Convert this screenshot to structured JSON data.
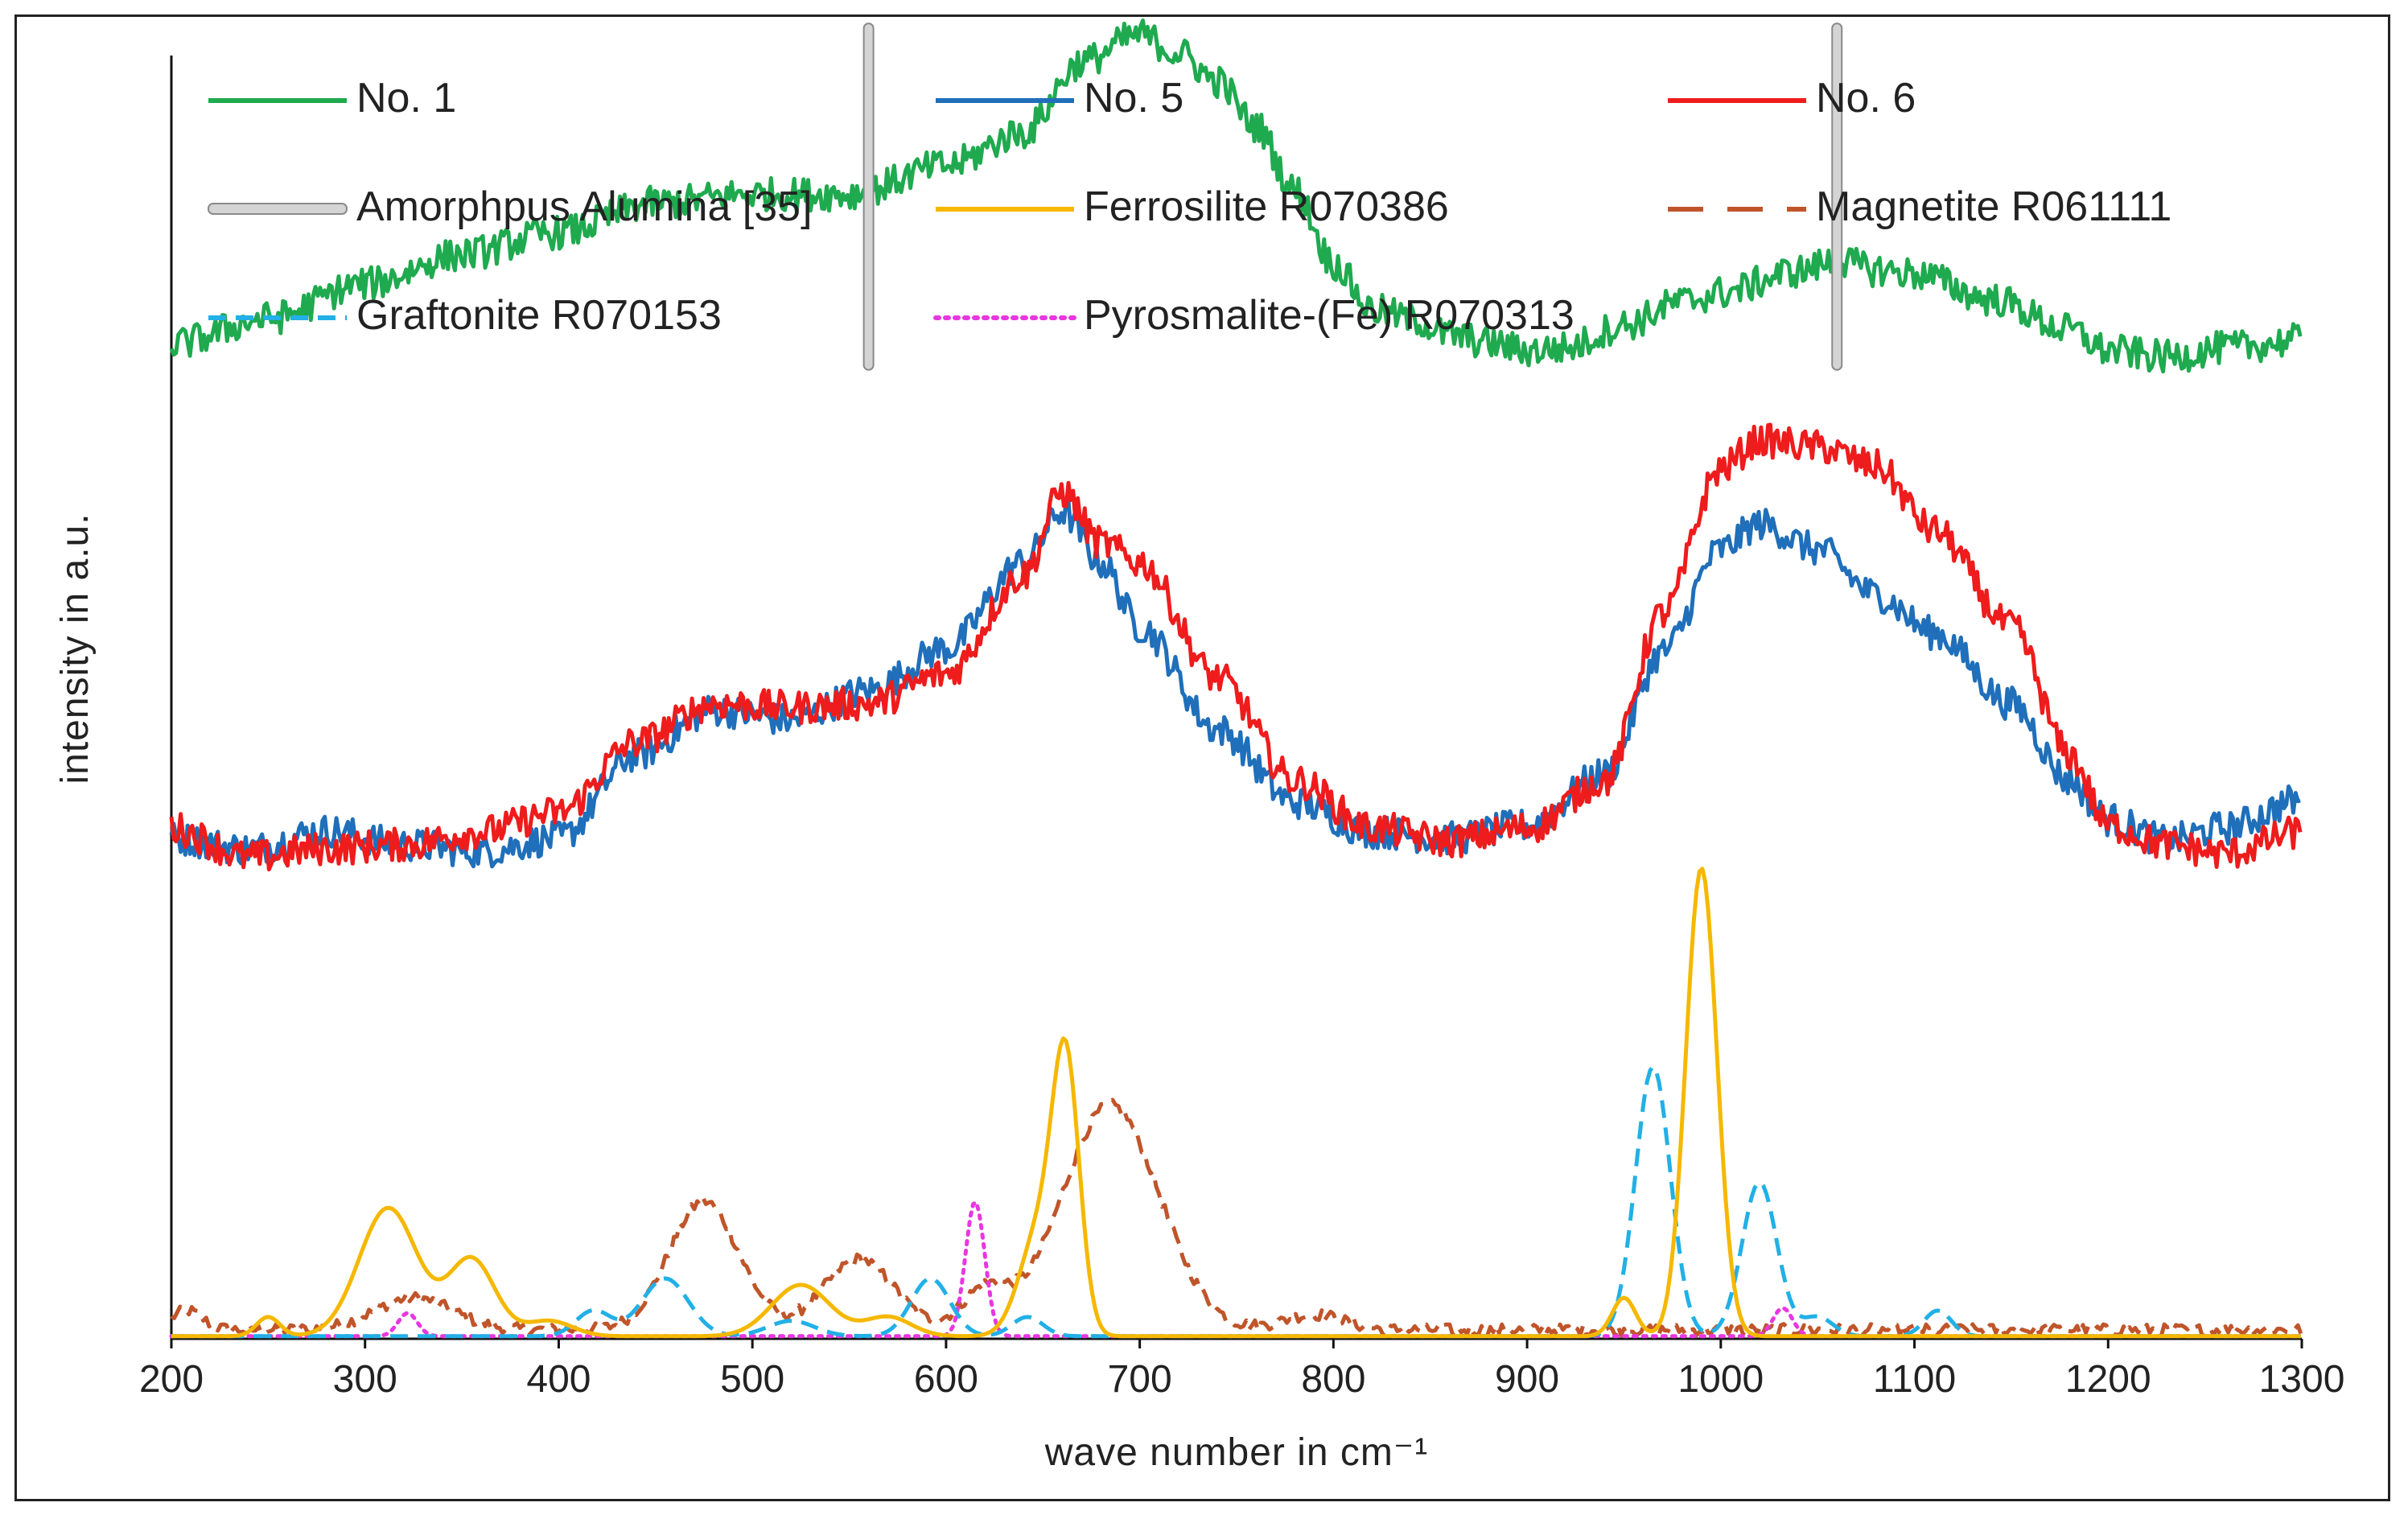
{
  "chart_data": {
    "type": "line",
    "title": "",
    "xlabel": "wave number in cm⁻¹",
    "ylabel": "intensity in a.u.",
    "xlim": [
      200,
      1300
    ],
    "ylim": [
      0,
      10
    ],
    "x_ticks": [
      "200",
      "300",
      "400",
      "500",
      "600",
      "700",
      "800",
      "900",
      "1000",
      "1100",
      "1200",
      "1300"
    ],
    "grid": false,
    "legend_position": "top",
    "series": [
      {
        "name": "No. 1",
        "color": "#1faa4f",
        "style": "solid",
        "x": [
          200,
          250,
          300,
          350,
          400,
          450,
          500,
          550,
          600,
          640,
          670,
          700,
          720,
          740,
          760,
          780,
          800,
          820,
          840,
          860,
          880,
          900,
          920,
          950,
          980,
          1000,
          1040,
          1060,
          1080,
          1100,
          1140,
          1180,
          1200,
          1230,
          1260,
          1300
        ],
        "y": [
          7.75,
          7.95,
          8.22,
          8.45,
          8.62,
          8.85,
          8.92,
          8.92,
          9.14,
          9.4,
          9.95,
          10.16,
          10.02,
          9.8,
          9.45,
          8.95,
          8.38,
          8.02,
          7.95,
          7.82,
          7.76,
          7.7,
          7.72,
          7.9,
          8.08,
          8.15,
          8.32,
          8.4,
          8.33,
          8.3,
          8.1,
          7.86,
          7.7,
          7.65,
          7.72,
          7.78
        ]
      },
      {
        "name": "No. 5",
        "color": "#1f6fba",
        "style": "solid",
        "x": [
          200,
          240,
          280,
          320,
          360,
          400,
          440,
          480,
          520,
          560,
          600,
          640,
          660,
          680,
          700,
          740,
          780,
          820,
          860,
          900,
          940,
          970,
          1000,
          1020,
          1050,
          1080,
          1110,
          1150,
          1180,
          1200,
          1230,
          1260,
          1300
        ],
        "y": [
          3.9,
          3.82,
          3.96,
          3.85,
          3.8,
          3.9,
          4.55,
          4.9,
          4.82,
          5.05,
          5.38,
          6.05,
          6.45,
          6.05,
          5.55,
          4.75,
          4.18,
          3.95,
          3.9,
          4.0,
          4.4,
          5.35,
          6.15,
          6.35,
          6.15,
          5.8,
          5.5,
          4.95,
          4.35,
          4.05,
          3.88,
          3.98,
          4.2
        ]
      },
      {
        "name": "No. 6",
        "color": "#ee1c1c",
        "style": "solid",
        "x": [
          200,
          240,
          280,
          320,
          360,
          400,
          440,
          480,
          520,
          560,
          600,
          640,
          660,
          680,
          700,
          740,
          780,
          820,
          860,
          900,
          940,
          970,
          1000,
          1020,
          1050,
          1080,
          1110,
          1150,
          1180,
          1200,
          1230,
          1260,
          1300
        ],
        "y": [
          3.98,
          3.75,
          3.82,
          3.85,
          3.95,
          4.1,
          4.65,
          4.95,
          4.92,
          4.95,
          5.18,
          5.95,
          6.6,
          6.2,
          6.05,
          5.15,
          4.35,
          3.98,
          3.88,
          3.98,
          4.35,
          5.65,
          6.78,
          7.0,
          6.95,
          6.8,
          6.3,
          5.55,
          4.55,
          4.0,
          3.85,
          3.78,
          3.95
        ]
      },
      {
        "name": "Amorphpus Alumina [35]",
        "color": "#b8b8b8",
        "style": "bar",
        "x": [
          560,
          1060
        ],
        "y_range": [
          7.55,
          10.25
        ]
      },
      {
        "name": "Ferrosilite R070386",
        "color": "#f5b800",
        "style": "solid",
        "peaks": [
          [
            250,
            0.15,
            6
          ],
          [
            312,
            1.0,
            15
          ],
          [
            355,
            0.6,
            12
          ],
          [
            395,
            0.12,
            12
          ],
          [
            525,
            0.4,
            15
          ],
          [
            570,
            0.15,
            12
          ],
          [
            648,
            0.8,
            10
          ],
          [
            662,
            2.0,
            7
          ],
          [
            950,
            0.3,
            6
          ],
          [
            990,
            3.65,
            8
          ]
        ]
      },
      {
        "name": "Magnetite R061111",
        "color": "#c0552a",
        "style": "dashed",
        "peaks": [
          [
            208,
            0.15,
            8
          ],
          [
            325,
            0.25,
            20
          ],
          [
            475,
            1.0,
            18
          ],
          [
            555,
            0.55,
            18
          ],
          [
            620,
            0.3,
            12
          ],
          [
            685,
            1.75,
            25
          ],
          [
            790,
            0.12,
            15
          ]
        ]
      },
      {
        "name": "Graftonite R070153",
        "color": "#22b0e6",
        "style": "dashed",
        "peaks": [
          [
            418,
            0.2,
            9
          ],
          [
            455,
            0.45,
            12
          ],
          [
            520,
            0.12,
            12
          ],
          [
            592,
            0.45,
            10
          ],
          [
            642,
            0.15,
            8
          ],
          [
            965,
            2.1,
            9
          ],
          [
            1020,
            1.2,
            9
          ],
          [
            1050,
            0.15,
            8
          ],
          [
            1112,
            0.2,
            7
          ]
        ]
      },
      {
        "name": "Pyrosmalite-(Fe) R070313",
        "color": "#e837e0",
        "style": "dotted",
        "peaks": [
          [
            322,
            0.18,
            5
          ],
          [
            615,
            1.05,
            5
          ],
          [
            1032,
            0.22,
            5
          ]
        ]
      }
    ]
  },
  "legend": [
    {
      "label": "No. 1",
      "color": "#1faa4f",
      "style": "solid"
    },
    {
      "label": "No. 5",
      "color": "#1f6fba",
      "style": "solid"
    },
    {
      "label": "No. 6",
      "color": "#ee1c1c",
      "style": "solid"
    },
    {
      "label": "Amorphpus Alumina [35]",
      "color": "#b8b8b8",
      "style": "double"
    },
    {
      "label": "Ferrosilite R070386",
      "color": "#f5b800",
      "style": "solid"
    },
    {
      "label": "Magnetite R061111",
      "color": "#c0552a",
      "style": "dashed"
    },
    {
      "label": "Graftonite R070153",
      "color": "#22b0e6",
      "style": "dashed"
    },
    {
      "label": "Pyrosmalite-(Fe) R070313",
      "color": "#e837e0",
      "style": "dotted"
    }
  ]
}
